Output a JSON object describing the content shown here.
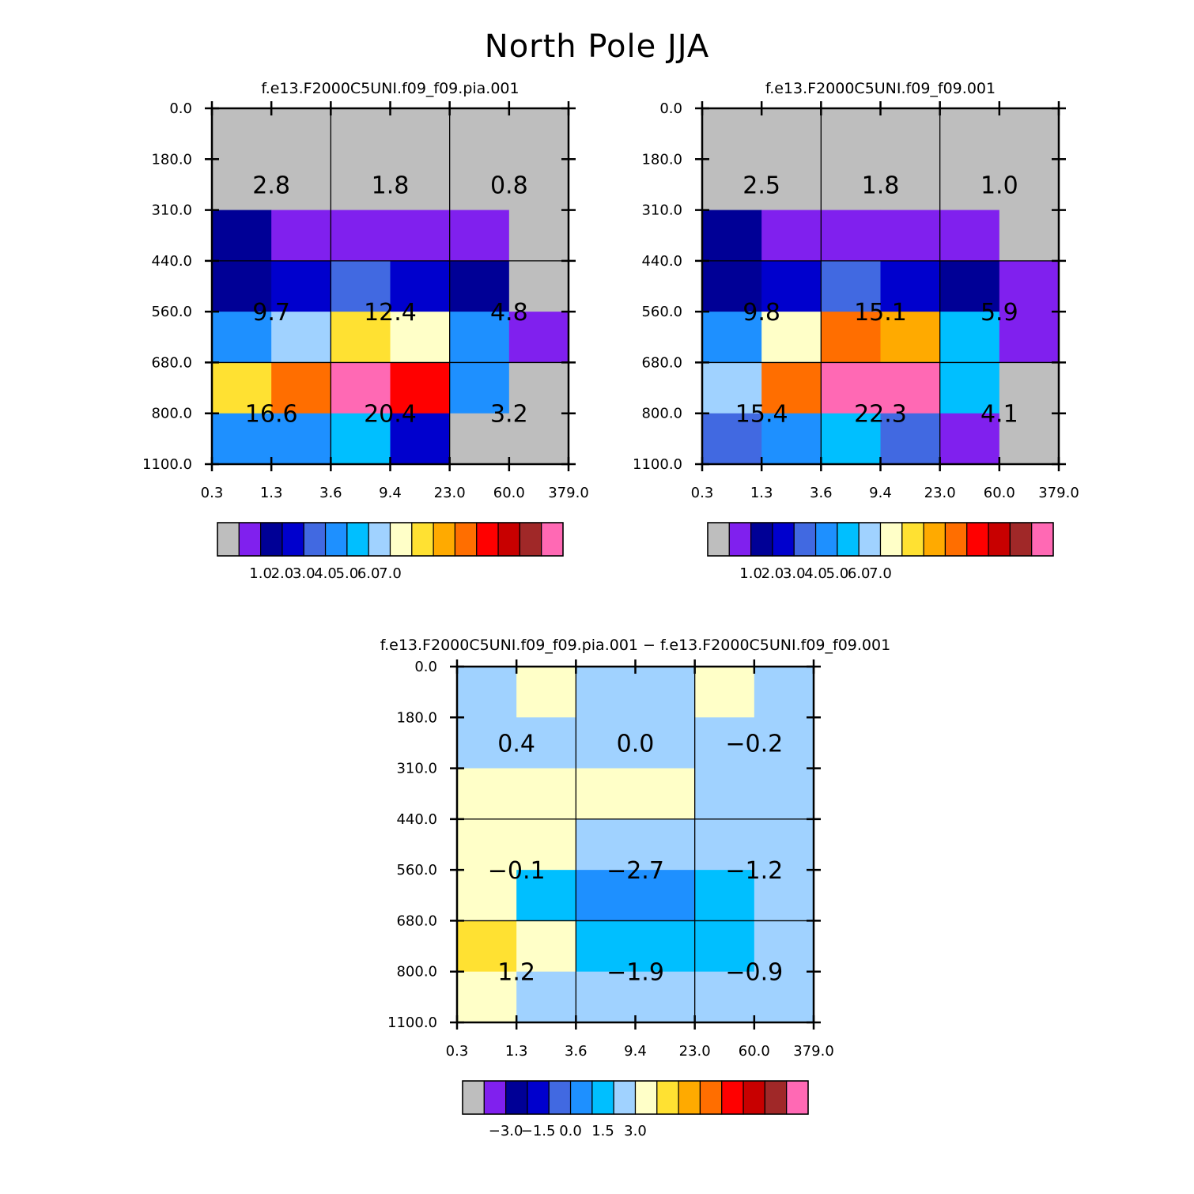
{
  "figure_title": "North Pole JJA",
  "chart_data": [
    {
      "type": "heatmap",
      "panel": "top-left",
      "title": "f.e13.F2000C5UNI.f09_f09.pia.001",
      "y_ticks": [
        "0.0",
        "180.0",
        "310.0",
        "440.0",
        "560.0",
        "680.0",
        "800.0",
        "1100.0"
      ],
      "x_ticks": [
        "0.3",
        "1.3",
        "3.6",
        "9.4",
        "23.0",
        "60.0",
        "379.0"
      ],
      "cells": [
        [
          0,
          0,
          0,
          0,
          0,
          0
        ],
        [
          0,
          0,
          0,
          0,
          0,
          0
        ],
        [
          2,
          1,
          1,
          1,
          1,
          0
        ],
        [
          2,
          3,
          4,
          3,
          2,
          0
        ],
        [
          5,
          7,
          9,
          8,
          5,
          1
        ],
        [
          9,
          11,
          15,
          12,
          5,
          0
        ],
        [
          5,
          5,
          6,
          3,
          0,
          0
        ]
      ],
      "boxes": [
        "2.8",
        "1.8",
        "0.8",
        "9.7",
        "12.4",
        "4.8",
        "16.6",
        "20.4",
        "3.2"
      ],
      "colorbar_labels": [
        "1.0",
        "2.0",
        "3.0",
        "4.0",
        "5.0",
        "6.0",
        "7.0"
      ]
    },
    {
      "type": "heatmap",
      "panel": "top-right",
      "title": "f.e13.F2000C5UNI.f09_f09.001",
      "y_ticks": [
        "0.0",
        "180.0",
        "310.0",
        "440.0",
        "560.0",
        "680.0",
        "800.0",
        "1100.0"
      ],
      "x_ticks": [
        "0.3",
        "1.3",
        "3.6",
        "9.4",
        "23.0",
        "60.0",
        "379.0"
      ],
      "cells": [
        [
          0,
          0,
          0,
          0,
          0,
          0
        ],
        [
          0,
          0,
          0,
          0,
          0,
          0
        ],
        [
          2,
          1,
          1,
          1,
          1,
          0
        ],
        [
          2,
          3,
          4,
          3,
          2,
          1
        ],
        [
          5,
          8,
          11,
          10,
          6,
          1
        ],
        [
          7,
          11,
          15,
          15,
          6,
          0
        ],
        [
          4,
          5,
          6,
          4,
          1,
          0
        ]
      ],
      "boxes": [
        "2.5",
        "1.8",
        "1.0",
        "9.8",
        "15.1",
        "5.9",
        "15.4",
        "22.3",
        "4.1"
      ],
      "colorbar_labels": [
        "1.0",
        "2.0",
        "3.0",
        "4.0",
        "5.0",
        "6.0",
        "7.0"
      ]
    },
    {
      "type": "heatmap",
      "panel": "bottom-difference",
      "title": "f.e13.F2000C5UNI.f09_f09.pia.001 − f.e13.F2000C5UNI.f09_f09.001",
      "y_ticks": [
        "0.0",
        "180.0",
        "310.0",
        "440.0",
        "560.0",
        "680.0",
        "800.0",
        "1100.0"
      ],
      "x_ticks": [
        "0.3",
        "1.3",
        "3.6",
        "9.4",
        "23.0",
        "60.0",
        "379.0"
      ],
      "cells": [
        [
          7,
          8,
          7,
          7,
          8,
          7
        ],
        [
          7,
          7,
          7,
          7,
          7,
          7
        ],
        [
          8,
          8,
          8,
          8,
          7,
          7
        ],
        [
          8,
          8,
          7,
          7,
          7,
          7
        ],
        [
          8,
          6,
          5,
          5,
          6,
          7
        ],
        [
          9,
          8,
          6,
          6,
          6,
          7
        ],
        [
          8,
          7,
          7,
          7,
          7,
          7
        ]
      ],
      "boxes": [
        "0.4",
        "0.0",
        "−0.2",
        "−0.1",
        "−2.7",
        "−1.2",
        "1.2",
        "−1.9",
        "−0.9"
      ],
      "colorbar_labels": [
        "−3.0",
        "−1.5",
        "0.0",
        "1.5",
        "3.0"
      ]
    }
  ],
  "palette": [
    "#bebebe",
    "#8020ee",
    "#000096",
    "#0000cd",
    "#4169e1",
    "#1e90ff",
    "#00bfff",
    "#a0d2ff",
    "#ffffc8",
    "#ffe132",
    "#ffaa00",
    "#ff6e00",
    "#ff0000",
    "#c80000",
    "#a02828",
    "#ff69b4"
  ]
}
